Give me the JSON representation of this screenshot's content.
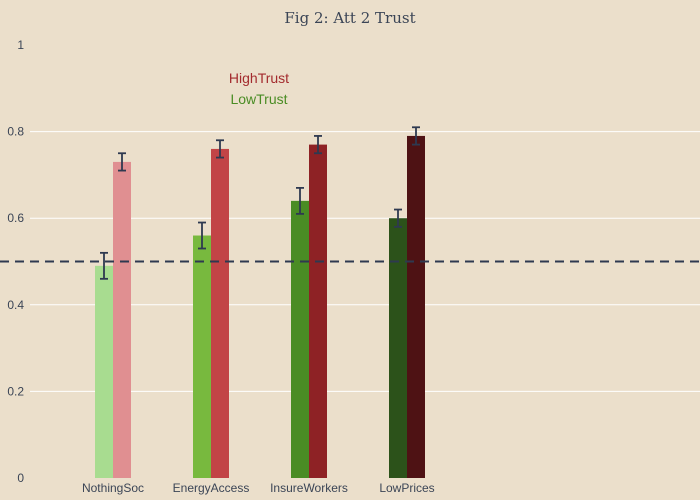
{
  "chart_data": {
    "type": "bar",
    "title": "Fig 2: Att 2 Trust",
    "xlabel": "",
    "ylabel": "",
    "ylim": [
      0,
      1
    ],
    "yticks": [
      "0",
      "0.2",
      "0.4",
      "0.6",
      "0.8",
      "1"
    ],
    "grid": true,
    "legend_position": "top-left",
    "categories": [
      "NothingSoc",
      "EnergyAccess",
      "InsureWorkers",
      "LowPrices"
    ],
    "series": [
      {
        "name": "LowTrust",
        "values": [
          0.49,
          0.56,
          0.64,
          0.6
        ],
        "errors": [
          0.03,
          0.03,
          0.03,
          0.02
        ],
        "colors": [
          "#a8dc90",
          "#78b93e",
          "#4a8c24",
          "#2c521a"
        ],
        "legend_color": "#4a8c24"
      },
      {
        "name": "HighTrust",
        "values": [
          0.73,
          0.76,
          0.77,
          0.79
        ],
        "errors": [
          0.02,
          0.02,
          0.02,
          0.02
        ],
        "colors": [
          "#e08f91",
          "#c24446",
          "#8e2225",
          "#4e1214"
        ],
        "legend_color": "#a32b2e"
      }
    ],
    "reference_line": {
      "y": 0.5,
      "style": "dashed",
      "color": "#2e3950"
    },
    "error_bar_color": "#2e3950"
  }
}
